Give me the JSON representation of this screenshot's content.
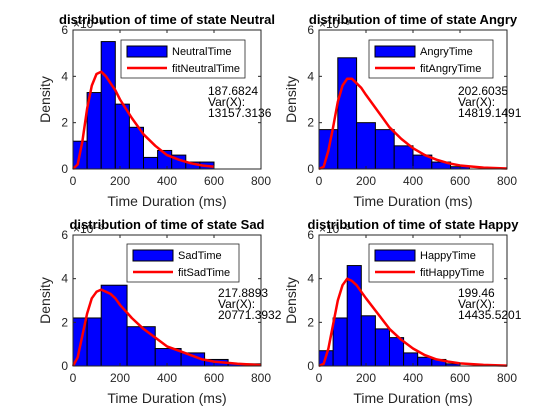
{
  "colors": {
    "bar_fill": "#0000ff",
    "bar_edge": "#000000",
    "fit_line": "#ff0000",
    "axis": "#262626"
  },
  "chart_data": [
    {
      "type": "bar",
      "title": "distribution of time of state Neutral",
      "xlabel": "Time Duration (ms)",
      "ylabel": "Density",
      "exponent_label": "×10⁻³",
      "xlim": [
        0,
        800
      ],
      "ylim": [
        0,
        0.006
      ],
      "xticks": [
        "0",
        "200",
        "400",
        "600",
        "800"
      ],
      "yticks": [
        "0",
        "2",
        "4",
        "6"
      ],
      "bins": [
        [
          0,
          60,
          0.0012
        ],
        [
          60,
          120,
          0.0033
        ],
        [
          120,
          180,
          0.0055
        ],
        [
          180,
          240,
          0.0028
        ],
        [
          240,
          300,
          0.0018
        ],
        [
          300,
          360,
          0.0005
        ],
        [
          360,
          420,
          0.0008
        ],
        [
          420,
          480,
          0.0006
        ],
        [
          480,
          540,
          0.0003
        ],
        [
          540,
          600,
          0.0003
        ]
      ],
      "series": [
        {
          "name": "NeutralTime",
          "kind": "histogram"
        },
        {
          "name": "fitNeutralTime",
          "kind": "fit",
          "x": [
            0,
            20,
            40,
            60,
            80,
            100,
            120,
            140,
            160,
            180,
            200,
            250,
            300,
            350,
            400,
            450,
            500,
            550,
            600
          ],
          "y": [
            0,
            0.0002,
            0.0012,
            0.0026,
            0.0036,
            0.0041,
            0.0042,
            0.004,
            0.0037,
            0.0034,
            0.003,
            0.0022,
            0.0015,
            0.001,
            0.0006,
            0.0004,
            0.00025,
            0.00015,
            0.0001
          ]
        }
      ],
      "stats": [
        "187.6824",
        "Var(X):",
        "13157.3136"
      ]
    },
    {
      "type": "bar",
      "title": "distribution of time of state Angry",
      "xlabel": "Time Duration (ms)",
      "ylabel": "Density",
      "exponent_label": "×10⁻³",
      "xlim": [
        0,
        800
      ],
      "ylim": [
        0,
        0.006
      ],
      "xticks": [
        "0",
        "200",
        "400",
        "600",
        "800"
      ],
      "yticks": [
        "0",
        "2",
        "4",
        "6"
      ],
      "bins": [
        [
          0,
          80,
          0.0017
        ],
        [
          80,
          160,
          0.0048
        ],
        [
          160,
          240,
          0.002
        ],
        [
          240,
          320,
          0.0017
        ],
        [
          320,
          400,
          0.001
        ],
        [
          400,
          480,
          0.0006
        ],
        [
          480,
          560,
          0.0003
        ],
        [
          560,
          640,
          0.0001
        ]
      ],
      "series": [
        {
          "name": "AngryTime",
          "kind": "histogram"
        },
        {
          "name": "fitAngryTime",
          "kind": "fit",
          "x": [
            0,
            20,
            40,
            60,
            80,
            100,
            120,
            140,
            160,
            180,
            200,
            250,
            300,
            350,
            400,
            450,
            500,
            550,
            600,
            700,
            800
          ],
          "y": [
            0,
            0.0001,
            0.0008,
            0.0018,
            0.0029,
            0.0036,
            0.0039,
            0.0039,
            0.0037,
            0.0035,
            0.0032,
            0.0025,
            0.0018,
            0.0013,
            0.0009,
            0.0006,
            0.0004,
            0.00025,
            0.00015,
            6e-05,
            2e-05
          ]
        }
      ],
      "stats": [
        "202.6035",
        "Var(X):",
        "14819.1491"
      ]
    },
    {
      "type": "bar",
      "title": "distribution of time of state Sad",
      "xlabel": "Time Duration (ms)",
      "ylabel": "Density",
      "exponent_label": "×10⁻³",
      "xlim": [
        0,
        800
      ],
      "ylim": [
        0,
        0.006
      ],
      "xticks": [
        "0",
        "200",
        "400",
        "600",
        "800"
      ],
      "yticks": [
        "0",
        "2",
        "4",
        "6"
      ],
      "bins": [
        [
          0,
          60,
          0.0022
        ],
        [
          60,
          120,
          0.0022
        ],
        [
          120,
          230,
          0.0037
        ],
        [
          230,
          350,
          0.0018
        ],
        [
          350,
          460,
          0.0008
        ],
        [
          460,
          560,
          0.0006
        ],
        [
          560,
          660,
          0.0003
        ],
        [
          660,
          800,
          0.0001
        ]
      ],
      "series": [
        {
          "name": "SadTime",
          "kind": "histogram"
        },
        {
          "name": "fitSadTime",
          "kind": "fit",
          "x": [
            0,
            20,
            40,
            60,
            80,
            100,
            120,
            140,
            160,
            180,
            200,
            250,
            300,
            350,
            400,
            450,
            500,
            550,
            600,
            700,
            800
          ],
          "y": [
            0,
            0.0004,
            0.0014,
            0.0024,
            0.0031,
            0.0034,
            0.0035,
            0.0034,
            0.0033,
            0.0031,
            0.0028,
            0.0022,
            0.0017,
            0.0013,
            0.0009,
            0.0007,
            0.0005,
            0.0003,
            0.0002,
            0.0001,
            4e-05
          ]
        }
      ],
      "stats": [
        "217.8893",
        "Var(X):",
        "20771.3932"
      ]
    },
    {
      "type": "bar",
      "title": "distribution of time of state Happy",
      "xlabel": "Time Duration (ms)",
      "ylabel": "Density",
      "exponent_label": "×10⁻³",
      "xlim": [
        0,
        800
      ],
      "ylim": [
        0,
        0.006
      ],
      "xticks": [
        "0",
        "200",
        "400",
        "600",
        "800"
      ],
      "yticks": [
        "0",
        "2",
        "4",
        "6"
      ],
      "bins": [
        [
          0,
          60,
          0.0007
        ],
        [
          60,
          120,
          0.0022
        ],
        [
          120,
          180,
          0.0046
        ],
        [
          180,
          240,
          0.0023
        ],
        [
          240,
          300,
          0.0017
        ],
        [
          300,
          360,
          0.0013
        ],
        [
          360,
          420,
          0.0006
        ],
        [
          420,
          480,
          0.0004
        ],
        [
          480,
          540,
          0.0003
        ],
        [
          540,
          600,
          0.0001
        ]
      ],
      "series": [
        {
          "name": "HappyTime",
          "kind": "histogram"
        },
        {
          "name": "fitHappyTime",
          "kind": "fit",
          "x": [
            0,
            20,
            40,
            60,
            80,
            100,
            120,
            140,
            160,
            180,
            200,
            250,
            300,
            350,
            400,
            450,
            500,
            550,
            600,
            700,
            800
          ],
          "y": [
            0,
            0.0001,
            0.0008,
            0.0019,
            0.003,
            0.0037,
            0.004,
            0.0039,
            0.0037,
            0.0034,
            0.0031,
            0.0024,
            0.0017,
            0.0012,
            0.0008,
            0.0005,
            0.0003,
            0.0002,
            0.00012,
            5e-05,
            2e-05
          ]
        }
      ],
      "stats": [
        "199.46",
        "Var(X):",
        "14435.5201"
      ]
    }
  ]
}
